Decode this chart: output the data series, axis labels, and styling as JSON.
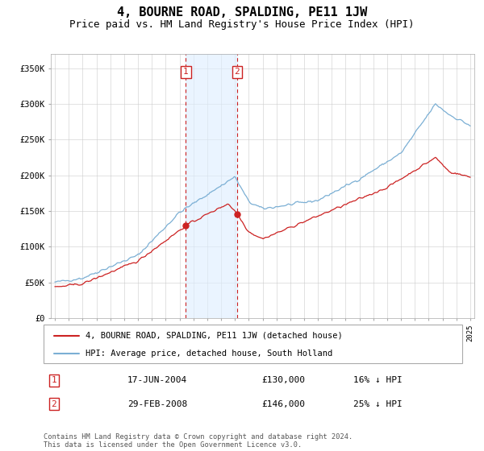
{
  "title": "4, BOURNE ROAD, SPALDING, PE11 1JW",
  "subtitle": "Price paid vs. HM Land Registry's House Price Index (HPI)",
  "title_fontsize": 11,
  "subtitle_fontsize": 9,
  "ylim": [
    0,
    370000
  ],
  "yticks": [
    0,
    50000,
    100000,
    150000,
    200000,
    250000,
    300000,
    350000
  ],
  "ytick_labels": [
    "£0",
    "£50K",
    "£100K",
    "£150K",
    "£200K",
    "£250K",
    "£300K",
    "£350K"
  ],
  "hpi_color": "#7bafd4",
  "price_color": "#cc2222",
  "sale1_date": 2004.46,
  "sale1_price": 130000,
  "sale1_label": "1",
  "sale2_date": 2008.16,
  "sale2_price": 146000,
  "sale2_label": "2",
  "shade_color": "#ddeeff",
  "shade_alpha": 0.6,
  "legend_line1": "4, BOURNE ROAD, SPALDING, PE11 1JW (detached house)",
  "legend_line2": "HPI: Average price, detached house, South Holland",
  "table_row1_num": "1",
  "table_row1_date": "17-JUN-2004",
  "table_row1_price": "£130,000",
  "table_row1_hpi": "16% ↓ HPI",
  "table_row2_num": "2",
  "table_row2_date": "29-FEB-2008",
  "table_row2_price": "£146,000",
  "table_row2_hpi": "25% ↓ HPI",
  "footer": "Contains HM Land Registry data © Crown copyright and database right 2024.\nThis data is licensed under the Open Government Licence v3.0.",
  "bg_color": "#ffffff",
  "grid_color": "#cccccc"
}
